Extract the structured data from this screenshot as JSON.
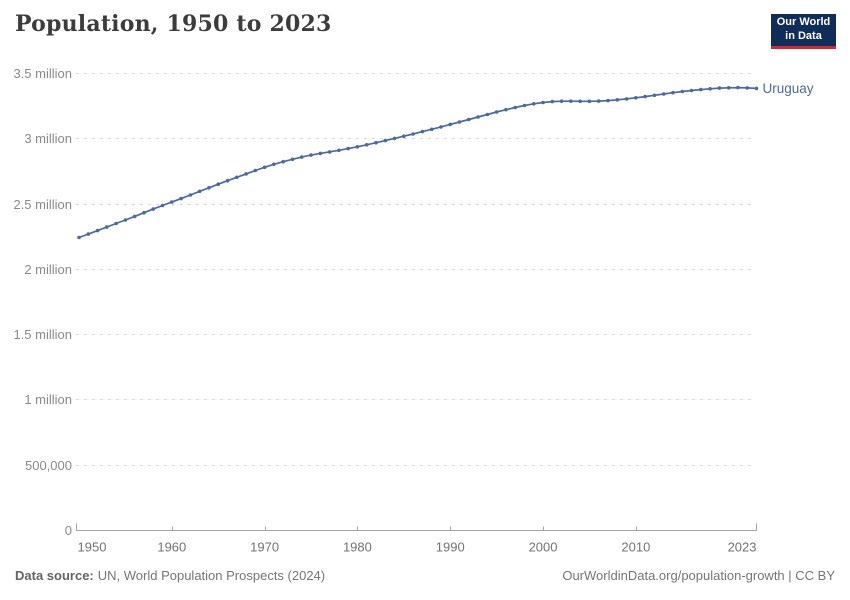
{
  "header": {
    "title": "Population, 1950 to 2023",
    "logo": {
      "line1": "Our World",
      "line2": "in Data"
    }
  },
  "footer": {
    "source_label": "Data source:",
    "source_text": "UN, World Population Prospects (2024)",
    "credit": "OurWorldinData.org/population-growth | CC BY"
  },
  "colors": {
    "series": "#4c6a9c",
    "entity_label": "#4c6a9c",
    "grid": "#d9d9d9",
    "axis": "#a3a3a3",
    "xtick_label": "#737373",
    "ytick_label": "#8a8a8a",
    "title": "#3c3c3c",
    "footer_text": "#757575",
    "logo_bg": "#102d59",
    "logo_red": "#cc2a36"
  },
  "chart_data": {
    "type": "line",
    "title": "Population, 1950 to 2023",
    "xlabel": "",
    "ylabel": "",
    "xlim": [
      1950,
      2023
    ],
    "ylim": [
      0,
      3500000
    ],
    "grid": "horizontal-dashed",
    "legend": "entity-label-at-line-end",
    "xticks": [
      1950,
      1960,
      1970,
      1980,
      1990,
      2000,
      2010,
      2023
    ],
    "yticks": [
      {
        "value": 0,
        "label": "0"
      },
      {
        "value": 500000,
        "label": "500,000"
      },
      {
        "value": 1000000,
        "label": "1 million"
      },
      {
        "value": 1500000,
        "label": "1.5 million"
      },
      {
        "value": 2000000,
        "label": "2 million"
      },
      {
        "value": 2500000,
        "label": "2.5 million"
      },
      {
        "value": 3000000,
        "label": "3 million"
      },
      {
        "value": 3500000,
        "label": "3.5 million"
      }
    ],
    "series": [
      {
        "name": "Uruguay",
        "color": "#4c6a9c",
        "years": [
          1950,
          1951,
          1952,
          1953,
          1954,
          1955,
          1956,
          1957,
          1958,
          1959,
          1960,
          1961,
          1962,
          1963,
          1964,
          1965,
          1966,
          1967,
          1968,
          1969,
          1970,
          1971,
          1972,
          1973,
          1974,
          1975,
          1976,
          1977,
          1978,
          1979,
          1980,
          1981,
          1982,
          1983,
          1984,
          1985,
          1986,
          1987,
          1988,
          1989,
          1990,
          1991,
          1992,
          1993,
          1994,
          1995,
          1996,
          1997,
          1998,
          1999,
          2000,
          2001,
          2002,
          2003,
          2004,
          2005,
          2006,
          2007,
          2008,
          2009,
          2010,
          2011,
          2012,
          2013,
          2014,
          2015,
          2016,
          2017,
          2018,
          2019,
          2020,
          2021,
          2022,
          2023
        ],
        "values": [
          2240000,
          2266000,
          2293000,
          2320000,
          2347000,
          2374000,
          2402000,
          2430000,
          2458000,
          2485000,
          2511000,
          2538000,
          2566000,
          2594000,
          2621000,
          2648000,
          2675000,
          2701000,
          2727000,
          2753000,
          2778000,
          2801000,
          2821000,
          2839000,
          2856000,
          2871000,
          2884000,
          2896000,
          2908000,
          2921000,
          2935000,
          2950000,
          2966000,
          2982000,
          2999000,
          3016000,
          3033000,
          3051000,
          3069000,
          3087000,
          3106000,
          3125000,
          3144000,
          3163000,
          3182000,
          3201000,
          3219000,
          3236000,
          3251000,
          3264000,
          3274000,
          3281000,
          3284000,
          3284000,
          3283000,
          3283000,
          3285000,
          3289000,
          3295000,
          3302000,
          3310000,
          3319000,
          3329000,
          3339000,
          3349000,
          3358000,
          3366000,
          3373000,
          3379000,
          3384000,
          3387000,
          3388000,
          3386000,
          3382000
        ]
      }
    ]
  }
}
